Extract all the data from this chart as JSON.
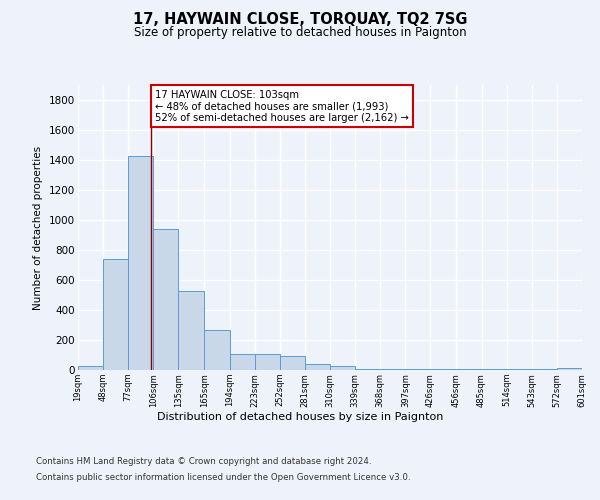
{
  "title": "17, HAYWAIN CLOSE, TORQUAY, TQ2 7SG",
  "subtitle": "Size of property relative to detached houses in Paignton",
  "xlabel": "Distribution of detached houses by size in Paignton",
  "ylabel": "Number of detached properties",
  "bin_edges": [
    19,
    48,
    77,
    106,
    135,
    165,
    194,
    223,
    252,
    281,
    310,
    339,
    368,
    397,
    426,
    456,
    485,
    514,
    543,
    572,
    601
  ],
  "bar_heights": [
    25,
    740,
    1430,
    940,
    530,
    265,
    110,
    110,
    95,
    40,
    25,
    10,
    10,
    10,
    5,
    5,
    5,
    5,
    5,
    15
  ],
  "bar_color": "#c8d8e8",
  "bar_edgecolor": "#5b9bd5",
  "vline_x": 103,
  "vline_color": "#8b0000",
  "annotation_line1": "17 HAYWAIN CLOSE: 103sqm",
  "annotation_line2": "← 48% of detached houses are smaller (1,993)",
  "annotation_line3": "52% of semi-detached houses are larger (2,162) →",
  "annotation_box_color": "white",
  "annotation_box_edgecolor": "#cc0000",
  "ylim": [
    0,
    1900
  ],
  "yticks": [
    0,
    200,
    400,
    600,
    800,
    1000,
    1200,
    1400,
    1600,
    1800
  ],
  "tick_labels": [
    "19sqm",
    "48sqm",
    "77sqm",
    "106sqm",
    "135sqm",
    "165sqm",
    "194sqm",
    "223sqm",
    "252sqm",
    "281sqm",
    "310sqm",
    "339sqm",
    "368sqm",
    "397sqm",
    "426sqm",
    "456sqm",
    "485sqm",
    "514sqm",
    "543sqm",
    "572sqm",
    "601sqm"
  ],
  "footer_line1": "Contains HM Land Registry data © Crown copyright and database right 2024.",
  "footer_line2": "Contains public sector information licensed under the Open Government Licence v3.0.",
  "bg_color": "#eef2fb",
  "grid_color": "white"
}
